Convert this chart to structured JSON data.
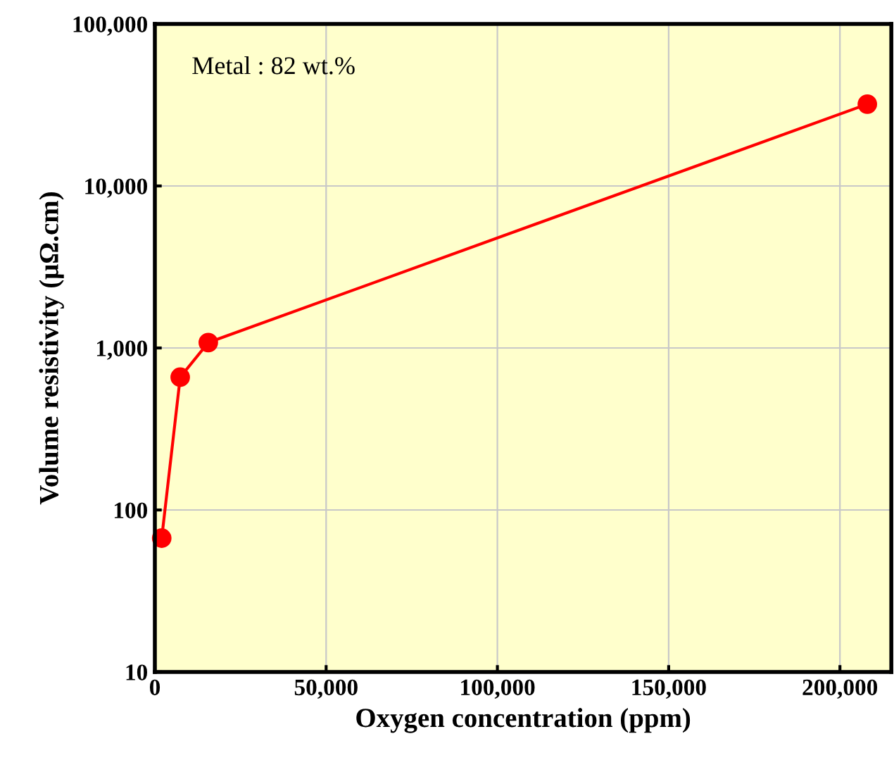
{
  "chart_data": {
    "type": "line",
    "xlabel": "Oxygen concentration (ppm)",
    "ylabel": "Volume resistivity (μΩ.cm)",
    "annotations": [
      "Metal : 82 wt.%"
    ],
    "x": [
      2000,
      7400,
      15600,
      208000
    ],
    "series": [
      {
        "color": "#ff0000",
        "values": [
          67,
          660,
          1080,
          32000
        ]
      }
    ],
    "log": "y",
    "xlim": [
      0,
      215000
    ],
    "xticks": [
      {
        "value": 0,
        "label": "0"
      },
      {
        "value": 50000,
        "label": "50,000"
      },
      {
        "value": 100000,
        "label": "100,000"
      },
      {
        "value": 150000,
        "label": "150,000"
      },
      {
        "value": 200000,
        "label": "200,000"
      }
    ],
    "ylim": [
      10,
      100000
    ],
    "yticks": [
      {
        "value": 10,
        "label": "10"
      },
      {
        "value": 100,
        "label": "100"
      },
      {
        "value": 1000,
        "label": "1,000"
      },
      {
        "value": 10000,
        "label": "10,000"
      },
      {
        "value": 100000,
        "label": "100,000"
      }
    ],
    "grid": true,
    "marker": "circle",
    "line_style": "solid"
  }
}
